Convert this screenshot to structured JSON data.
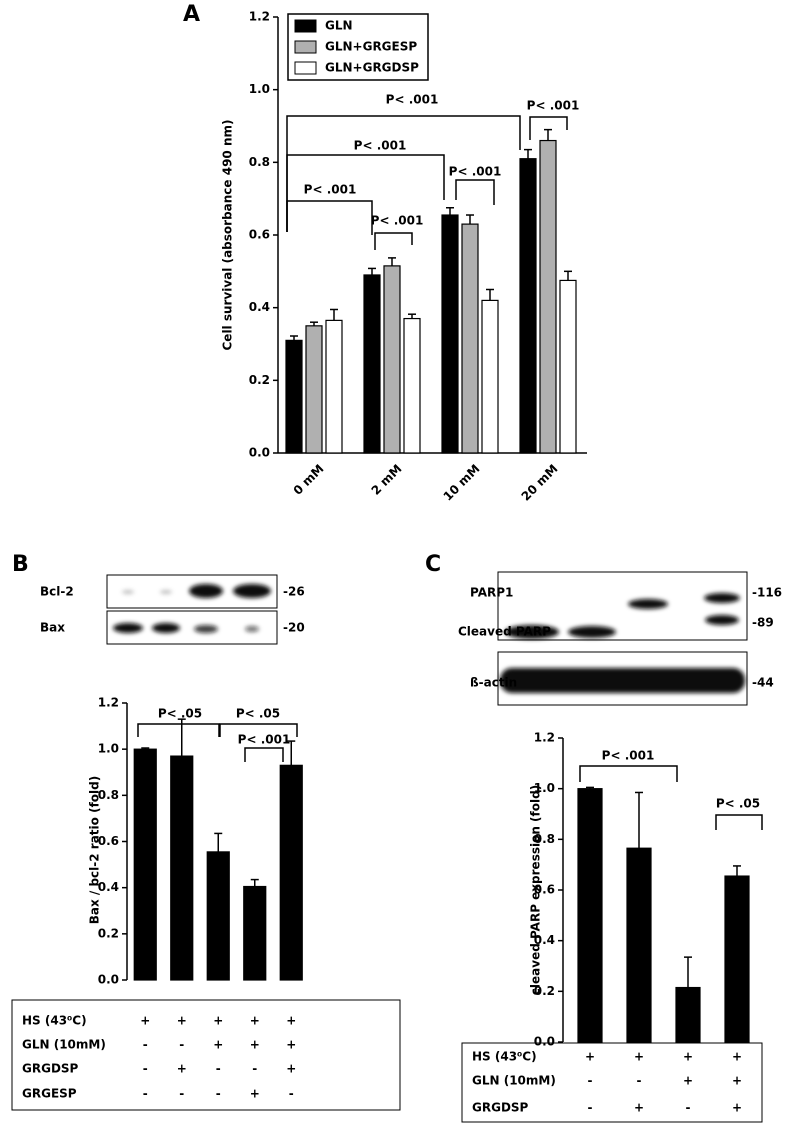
{
  "chart_data": [
    {
      "type": "bar",
      "panel": "A",
      "ylabel": "Cell survival (absorbance 490 nm)",
      "categories": [
        "0 mM",
        "2 mM",
        "10 mM",
        "20 mM"
      ],
      "series": [
        {
          "name": "GLN",
          "color": "#000000",
          "values": [
            0.31,
            0.49,
            0.655,
            0.81
          ],
          "errors": [
            0.012,
            0.018,
            0.02,
            0.025
          ]
        },
        {
          "name": "GLN+GRGESP",
          "color": "#b0b0b0",
          "values": [
            0.35,
            0.515,
            0.63,
            0.86
          ],
          "errors": [
            0.01,
            0.022,
            0.025,
            0.03
          ]
        },
        {
          "name": "GLN+GRGDSP",
          "color": "#ffffff",
          "values": [
            0.365,
            0.37,
            0.42,
            0.475
          ],
          "errors": [
            0.03,
            0.012,
            0.03,
            0.025
          ]
        }
      ],
      "ylim": [
        0,
        1.2
      ],
      "yticks": [
        {
          "value": 0,
          "label": "0.0"
        },
        0.2,
        0.4,
        0.6,
        0.8,
        {
          "value": 1,
          "label": "1.0"
        },
        1.2
      ],
      "legend": "upper left",
      "annotations": [
        "P< .001",
        "P< .001",
        "P< .001",
        "P< .001",
        "P< .001",
        "P< .001"
      ]
    },
    {
      "type": "bar",
      "panel": "B",
      "ylabel": "Bax / bcl-2 ratio (fold)",
      "blot_labels": [
        "Bcl-2",
        "Bax"
      ],
      "blot_sizes": [
        "-26",
        "-20"
      ],
      "values": [
        1.0,
        0.97,
        0.555,
        0.405,
        0.93
      ],
      "errors": [
        0.005,
        0.16,
        0.08,
        0.03,
        0.105
      ],
      "color": "#000000",
      "ylim": [
        0,
        1.2
      ],
      "yticks": [
        {
          "value": 0,
          "label": "0.0"
        },
        0.2,
        0.4,
        0.6,
        0.8,
        {
          "value": 1,
          "label": "1.0"
        },
        1.2
      ],
      "annotations": [
        "P< .05",
        "P< .05",
        "P< .001"
      ],
      "conditions": [
        {
          "label": "HS (43⁰C)",
          "marks": [
            "+",
            "+",
            "+",
            "+",
            "+"
          ]
        },
        {
          "label": "GLN (10mM)",
          "marks": [
            "-",
            "-",
            "+",
            "+",
            "+"
          ]
        },
        {
          "label": "GRGDSP",
          "marks": [
            "-",
            "+",
            "-",
            "-",
            "+"
          ]
        },
        {
          "label": "GRGESP",
          "marks": [
            "-",
            "-",
            "-",
            "+",
            "-"
          ]
        }
      ]
    },
    {
      "type": "bar",
      "panel": "C",
      "ylabel": "cleaved PARP expression (fold)",
      "blot_labels": [
        "PARP1",
        "Cleaved PARP",
        "ß-actin"
      ],
      "blot_sizes": [
        "-116",
        "-89",
        "-44"
      ],
      "values": [
        1.0,
        0.765,
        0.215,
        0.655
      ],
      "errors": [
        0.005,
        0.22,
        0.12,
        0.04
      ],
      "color": "#000000",
      "ylim": [
        0,
        1.2
      ],
      "yticks": [
        {
          "value": 0,
          "label": "0.0"
        },
        0.2,
        0.4,
        0.6,
        0.8,
        {
          "value": 1,
          "label": "1.0"
        },
        1.2
      ],
      "annotations": [
        "P< .001",
        "P< .05"
      ],
      "conditions": [
        {
          "label": "HS (43⁰C)",
          "marks": [
            "+",
            "+",
            "+",
            "+"
          ]
        },
        {
          "label": "GLN (10mM)",
          "marks": [
            "-",
            "-",
            "+",
            "+"
          ]
        },
        {
          "label": "GRGDSP",
          "marks": [
            "-",
            "+",
            "-",
            "+"
          ]
        }
      ]
    }
  ]
}
